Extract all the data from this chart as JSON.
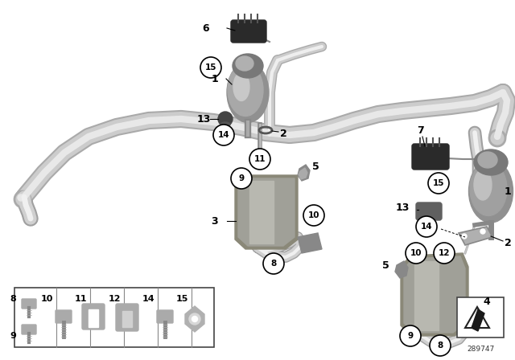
{
  "bg_color": "#ffffff",
  "diagram_number": "289747",
  "pipe_color_outer": "#b8b8b8",
  "pipe_color_mid": "#d0d0d0",
  "pipe_color_highlight": "#e8e8e8",
  "pipe_lw_outer": 14,
  "pipe_lw_mid": 11,
  "pipe_lw_hi": 5,
  "dark_part_color": "#404040",
  "valve_color": "#909090",
  "valve_top_color": "#b0b0b0",
  "bracket_color": "#8a9070",
  "bracket_light": "#a8b890",
  "clamp_color": "#606060",
  "label_fs": 9,
  "circle_label_fs": 7.5,
  "legend_border": "#444444",
  "note_color": "#333333"
}
